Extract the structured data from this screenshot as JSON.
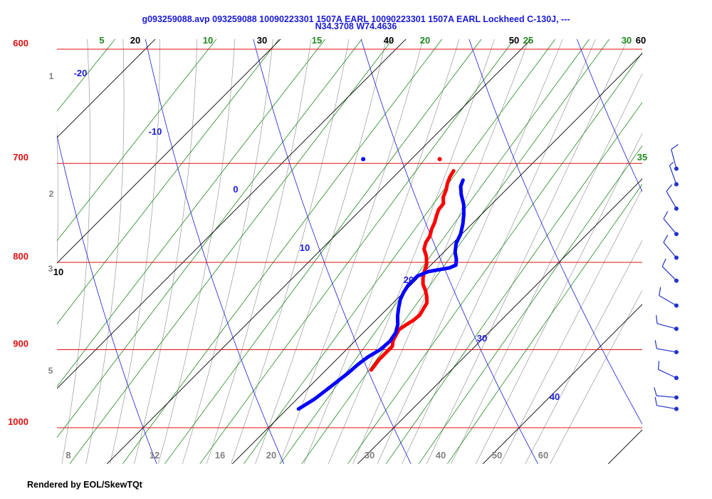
{
  "header": {
    "line1": "g093259088.avp 093259088 10090223301  1507A EARL  10090223301  1507A  EARL Lockheed C-130J, ---",
    "line2": "N34.3708 W74.4636"
  },
  "footer": {
    "text": "Rendered by EOL/SkewTQt"
  },
  "colors": {
    "isobar": "#e01010",
    "isotherm": "#000000",
    "isotherm_label_top": "#000000",
    "mixing_ratio": "#1f8a1f",
    "dry_adiabat": "#1a1add",
    "moist_adiabat": "#9a9a9a",
    "temperature": "#ff0000",
    "dewpoint": "#0000ff",
    "wind_barb": "#2233cc",
    "gray_label": "#808080"
  },
  "chart_data": {
    "type": "skew-t",
    "pressure_range_hpa": [
      1000,
      600
    ],
    "pressure_labels": [
      "600",
      "700",
      "800",
      "900",
      "1000"
    ],
    "isotherm_labels": [
      "10",
      "20",
      "30",
      "40",
      "50",
      "60"
    ],
    "mixing_ratio_labels": [
      "5",
      "10",
      "15",
      "20",
      "25",
      "30",
      "35"
    ],
    "dry_adiabat_labels": [
      "-20",
      "-10",
      "0",
      "10",
      "20",
      "30",
      "40"
    ],
    "moist_adiabat_labels": [
      "8",
      "12",
      "16",
      "20",
      "30",
      "40",
      "50",
      "60"
    ],
    "left_axis_labels": [
      "1",
      "2",
      "3",
      "5"
    ],
    "surface_labels": [
      "-20"
    ],
    "series": [
      {
        "variable": "temperature",
        "points": [
          {
            "p": 925,
            "t": 23.6
          },
          {
            "p": 912,
            "t": 23.4
          },
          {
            "p": 903,
            "t": 23.4
          },
          {
            "p": 896,
            "t": 23.4
          },
          {
            "p": 889,
            "t": 23.0
          },
          {
            "p": 876,
            "t": 22.6
          },
          {
            "p": 870,
            "t": 22.8
          },
          {
            "p": 865,
            "t": 23.0
          },
          {
            "p": 859,
            "t": 23.1
          },
          {
            "p": 852,
            "t": 22.9
          },
          {
            "p": 845,
            "t": 22.7
          },
          {
            "p": 838,
            "t": 22.2
          },
          {
            "p": 831,
            "t": 21.6
          },
          {
            "p": 824,
            "t": 20.9
          },
          {
            "p": 817,
            "t": 20.4
          },
          {
            "p": 810,
            "t": 20.0
          },
          {
            "p": 802,
            "t": 19.6
          },
          {
            "p": 793,
            "t": 18.9
          },
          {
            "p": 786,
            "t": 18.2
          },
          {
            "p": 779,
            "t": 17.8
          },
          {
            "p": 772,
            "t": 17.6
          },
          {
            "p": 765,
            "t": 17.2
          },
          {
            "p": 758,
            "t": 16.9
          },
          {
            "p": 751,
            "t": 16.5
          },
          {
            "p": 745,
            "t": 16.2
          },
          {
            "p": 739,
            "t": 16.1
          },
          {
            "p": 733,
            "t": 15.6
          },
          {
            "p": 725,
            "t": 15.2
          },
          {
            "p": 719,
            "t": 14.8
          },
          {
            "p": 713,
            "t": 14.5
          },
          {
            "p": 707,
            "t": 14.3
          }
        ],
        "surface_marker": {
          "p": 700,
          "t": 12.6
        }
      },
      {
        "variable": "dewpoint",
        "points": [
          {
            "p": 975,
            "t": 20.9
          },
          {
            "p": 962,
            "t": 21.4
          },
          {
            "p": 951,
            "t": 21.6
          },
          {
            "p": 940,
            "t": 21.8
          },
          {
            "p": 929,
            "t": 22.0
          },
          {
            "p": 918,
            "t": 22.1
          },
          {
            "p": 909,
            "t": 22.3
          },
          {
            "p": 900,
            "t": 22.7
          },
          {
            "p": 890,
            "t": 22.8
          },
          {
            "p": 880,
            "t": 22.6
          },
          {
            "p": 870,
            "t": 22.1
          },
          {
            "p": 860,
            "t": 21.4
          },
          {
            "p": 850,
            "t": 20.8
          },
          {
            "p": 841,
            "t": 20.3
          },
          {
            "p": 833,
            "t": 20.0
          },
          {
            "p": 825,
            "t": 19.8
          },
          {
            "p": 815,
            "t": 19.8
          },
          {
            "p": 810,
            "t": 20.3
          },
          {
            "p": 806,
            "t": 21.7
          },
          {
            "p": 803,
            "t": 22.0
          },
          {
            "p": 797,
            "t": 21.6
          },
          {
            "p": 789,
            "t": 20.9
          },
          {
            "p": 780,
            "t": 20.3
          },
          {
            "p": 770,
            "t": 19.9
          },
          {
            "p": 760,
            "t": 19.3
          },
          {
            "p": 750,
            "t": 18.6
          },
          {
            "p": 740,
            "t": 17.8
          },
          {
            "p": 730,
            "t": 16.8
          },
          {
            "p": 722,
            "t": 16.1
          },
          {
            "p": 716,
            "t": 15.8
          }
        ],
        "surface_marker": {
          "p": 700,
          "t": 6.5
        }
      }
    ],
    "wind_barbs": [
      {
        "p": 705,
        "dir": 345,
        "spd": 10
      },
      {
        "p": 720,
        "dir": 340,
        "spd": 5
      },
      {
        "p": 744,
        "dir": 330,
        "spd": 10
      },
      {
        "p": 770,
        "dir": 320,
        "spd": 10
      },
      {
        "p": 795,
        "dir": 320,
        "spd": 10
      },
      {
        "p": 820,
        "dir": 315,
        "spd": 10
      },
      {
        "p": 848,
        "dir": 300,
        "spd": 10
      },
      {
        "p": 875,
        "dir": 285,
        "spd": 10
      },
      {
        "p": 903,
        "dir": 280,
        "spd": 10
      },
      {
        "p": 935,
        "dir": 295,
        "spd": 10
      },
      {
        "p": 960,
        "dir": 275,
        "spd": 10
      },
      {
        "p": 975,
        "dir": 280,
        "spd": 10
      }
    ]
  }
}
